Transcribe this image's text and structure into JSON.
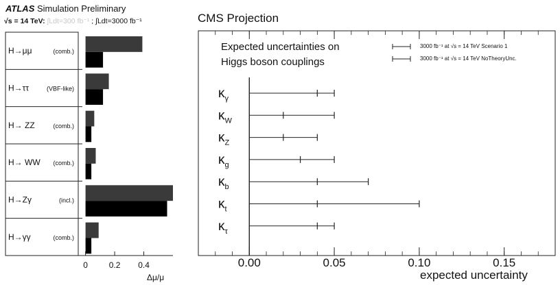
{
  "chart_data": [
    {
      "type": "bar",
      "title": "ATLAS Simulation Preliminary",
      "title_bold": "ATLAS",
      "title_rest": "Simulation Preliminary",
      "subtitle": "√s = 14 TeV: ∫Ldt=300 fb⁻¹ ; ∫Ldt=3000 fb⁻¹",
      "subtitle_energy": "√s = 14 TeV:",
      "subtitle_faded": "∫Ldt=300 fb⁻¹",
      "subtitle_sep": ";",
      "subtitle_lumi": "∫Ldt=3000 fb⁻¹",
      "xlabel": "Δμ/μ",
      "xlim": [
        -0.05,
        0.6
      ],
      "xticks": [
        "0",
        "0.2",
        "0.4"
      ],
      "xtick_values": [
        0,
        0.2,
        0.4
      ],
      "categories": [
        {
          "channel": "H→μμ",
          "note": "(comb.)"
        },
        {
          "channel": "H→ττ",
          "note": "(VBF-like)"
        },
        {
          "channel": "H→ ZZ",
          "note": "(comb.)"
        },
        {
          "channel": "H→ WW",
          "note": "(comb.)"
        },
        {
          "channel": "H→Zγ",
          "note": "(incl.)"
        },
        {
          "channel": "H→γγ",
          "note": "(comb.)"
        }
      ],
      "series": [
        {
          "values": [
            0.39,
            0.16,
            0.06,
            0.07,
            0.62,
            0.09
          ],
          "color": "#3a3a3a"
        },
        {
          "values": [
            0.12,
            0.12,
            0.04,
            0.04,
            0.56,
            0.04
          ],
          "color": "#000000"
        }
      ],
      "grid": false
    },
    {
      "type": "errorbar",
      "title": "CMS Projection",
      "annotation_line1": "Expected uncertainties on",
      "annotation_line2": "Higgs boson couplings",
      "xlabel": "expected uncertainty",
      "xlim": [
        -0.03,
        0.18
      ],
      "xticks": [
        "0.00",
        "0.05",
        "0.10",
        "0.15"
      ],
      "xtick_values": [
        0,
        0.05,
        0.1,
        0.15
      ],
      "legend": [
        {
          "label": "3000 fb⁻¹ at √s = 14 TeV Scenario 1",
          "marker": "capped-short"
        },
        {
          "label": "3000 fb⁻¹ at √s = 14 TeV NoTheoryUnc.",
          "marker": "capped-long"
        }
      ],
      "legend_position": "top-right",
      "categories": [
        {
          "symbol": "κ",
          "sub": "γ"
        },
        {
          "symbol": "κ",
          "sub": "W"
        },
        {
          "symbol": "κ",
          "sub": "Z"
        },
        {
          "symbol": "κ",
          "sub": "g"
        },
        {
          "symbol": "κ",
          "sub": "b"
        },
        {
          "symbol": "κ",
          "sub": "t"
        },
        {
          "symbol": "κ",
          "sub": "τ"
        }
      ],
      "series": [
        {
          "name": "Scenario 1",
          "values": [
            0.05,
            0.05,
            0.04,
            0.05,
            0.07,
            0.1,
            0.05
          ]
        },
        {
          "name": "NoTheoryUnc.",
          "values": [
            0.04,
            0.02,
            0.02,
            0.03,
            0.04,
            0.04,
            0.04
          ]
        }
      ],
      "grid": false
    }
  ]
}
